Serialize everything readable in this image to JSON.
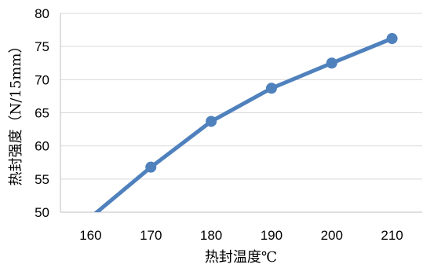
{
  "chart_data": {
    "type": "line",
    "x": [
      160,
      170,
      180,
      190,
      200,
      210
    ],
    "categories": [
      "160",
      "170",
      "180",
      "190",
      "200",
      "210"
    ],
    "series": [
      {
        "values": [
          49.2,
          56.8,
          63.7,
          68.7,
          72.5,
          76.2
        ]
      }
    ],
    "xlabel": "热封温度℃",
    "ylabel": "热封强度（N/15mm）",
    "ylim": [
      50,
      80
    ],
    "yticks": [
      50,
      55,
      60,
      65,
      70,
      75,
      80
    ],
    "grid": "horizontal",
    "legend": "none",
    "colors": {
      "series": "#4f81bd",
      "grid": "#d9d9d9",
      "axis": "#bfbfbf"
    }
  }
}
